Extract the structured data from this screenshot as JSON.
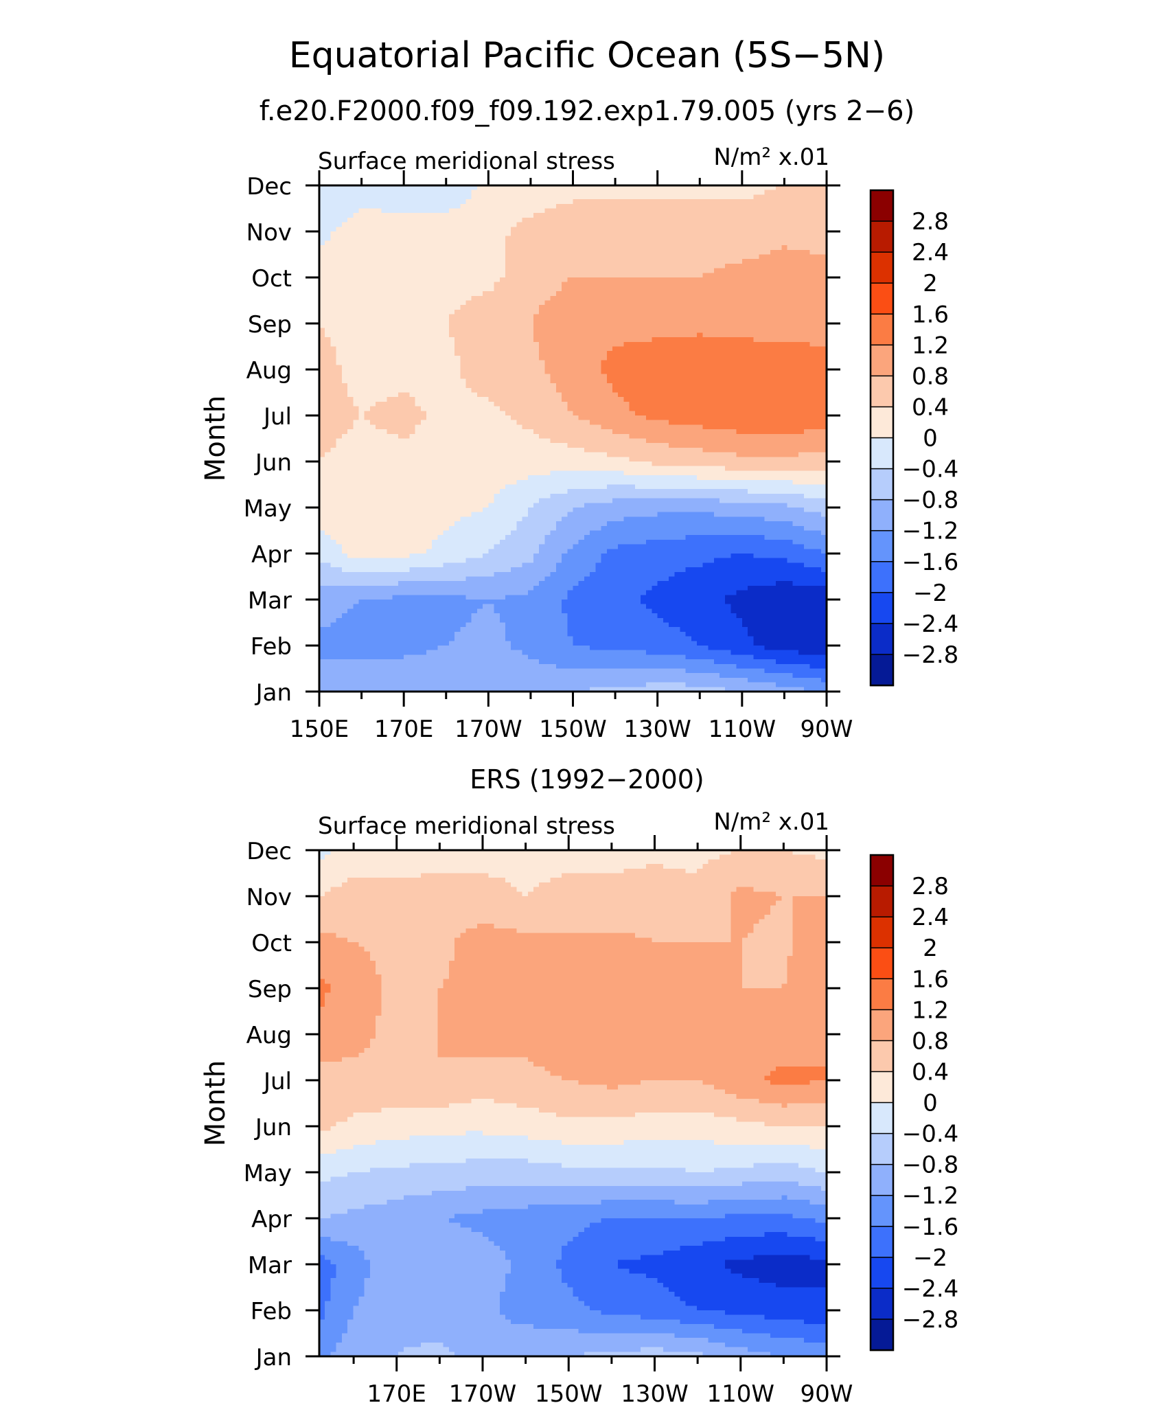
{
  "title": "Equatorial Pacific Ocean (5S−5N)",
  "subtitle": "f.e20.F2000.f09_f09.192.exp1.79.005 (yrs 2−6)",
  "colorbar": {
    "labels": [
      "2.8",
      "2.4",
      "2",
      "1.6",
      "1.2",
      "0.8",
      "0.4",
      "0",
      "−0.4",
      "−0.8",
      "−1.2",
      "−1.6",
      "−2",
      "−2.4",
      "−2.8"
    ],
    "levels": [
      2.8,
      2.4,
      2.0,
      1.6,
      1.2,
      0.8,
      0.4,
      0,
      -0.4,
      -0.8,
      -1.2,
      -1.6,
      -2.0,
      -2.4,
      -2.8
    ],
    "colors": [
      "#8b0000",
      "#b81b00",
      "#dc3100",
      "#fb4e14",
      "#fb7c44",
      "#fba57c",
      "#fcc9ad",
      "#fde9d9",
      "#d8e8fc",
      "#b6cdfc",
      "#8fb0fc",
      "#6494fc",
      "#3d71fc",
      "#1748f0",
      "#0b2cc8",
      "#051a96"
    ]
  },
  "chart_data": [
    {
      "type": "heatmap",
      "panel_title": "",
      "left_label": "Surface meridional stress",
      "right_label": "N/m² x.01",
      "ylabel": "Month",
      "xlabel": "",
      "x_tick_labels": [
        "150E",
        "170E",
        "170W",
        "150W",
        "130W",
        "110W",
        "90W"
      ],
      "x_tick_values": [
        150,
        170,
        190,
        210,
        230,
        250,
        270
      ],
      "y_tick_labels": [
        "Jan",
        "Feb",
        "Mar",
        "Apr",
        "May",
        "Jun",
        "Jul",
        "Aug",
        "Sep",
        "Oct",
        "Nov",
        "Dec"
      ],
      "xlim": [
        150,
        270
      ],
      "ylim": [
        1,
        12
      ],
      "x": [
        150,
        160,
        170,
        180,
        190,
        200,
        210,
        220,
        230,
        240,
        250,
        260,
        270
      ],
      "y": [
        1,
        2,
        3,
        4,
        5,
        6,
        7,
        8,
        9,
        10,
        11,
        12
      ],
      "z": [
        [
          -1.0,
          -0.8,
          -0.9,
          -0.9,
          -1.0,
          -0.9,
          -0.8,
          -0.7,
          -0.6,
          -0.6,
          -0.8,
          -1.0,
          -1.3
        ],
        [
          -1.3,
          -1.4,
          -1.3,
          -1.2,
          -1.1,
          -1.3,
          -1.6,
          -1.7,
          -1.8,
          -2.0,
          -2.3,
          -2.6,
          -2.7
        ],
        [
          -1.0,
          -1.2,
          -1.3,
          -1.3,
          -1.2,
          -1.3,
          -1.7,
          -1.9,
          -2.1,
          -2.3,
          -2.5,
          -2.7,
          -2.7
        ],
        [
          -0.3,
          0.2,
          0.1,
          -0.1,
          -0.4,
          -0.7,
          -1.3,
          -1.7,
          -1.8,
          -1.9,
          -2.0,
          -1.9,
          -1.6
        ],
        [
          0.3,
          0.2,
          0.2,
          0.1,
          0.0,
          -0.4,
          -0.8,
          -1.0,
          -1.1,
          -1.1,
          -1.0,
          -0.9,
          -0.6
        ],
        [
          0.4,
          0.3,
          0.3,
          0.3,
          0.2,
          0.2,
          0.2,
          0.3,
          0.5,
          0.6,
          0.7,
          0.7,
          0.6
        ],
        [
          0.5,
          0.4,
          0.5,
          0.3,
          0.3,
          0.5,
          0.8,
          1.1,
          1.3,
          1.4,
          1.5,
          1.6,
          1.4
        ],
        [
          0.5,
          0.3,
          0.3,
          0.3,
          0.6,
          0.7,
          1.0,
          1.3,
          1.4,
          1.5,
          1.6,
          1.5,
          1.4
        ],
        [
          0.4,
          0.3,
          0.3,
          0.4,
          0.6,
          0.8,
          1.1,
          1.1,
          1.1,
          1.1,
          1.0,
          1.0,
          1.0
        ],
        [
          0.2,
          0.3,
          0.3,
          0.3,
          0.3,
          0.6,
          0.8,
          0.8,
          0.8,
          0.8,
          0.9,
          1.0,
          1.0
        ],
        [
          -0.1,
          0.2,
          0.2,
          0.2,
          0.3,
          0.5,
          0.6,
          0.6,
          0.6,
          0.6,
          0.6,
          0.7,
          0.6
        ],
        [
          -0.3,
          -0.2,
          -0.3,
          -0.3,
          0.1,
          0.2,
          0.3,
          0.3,
          0.3,
          0.3,
          0.3,
          0.4,
          0.4
        ]
      ]
    },
    {
      "type": "heatmap",
      "panel_title": "ERS (1992−2000)",
      "left_label": "Surface meridional stress",
      "right_label": "N/m² x.01",
      "ylabel": "Month",
      "xlabel": "",
      "x_tick_labels": [
        "170E",
        "170W",
        "150W",
        "130W",
        "110W",
        "90W"
      ],
      "x_tick_values": [
        170,
        190,
        210,
        230,
        250,
        270
      ],
      "y_tick_labels": [
        "Jan",
        "Feb",
        "Mar",
        "Apr",
        "May",
        "Jun",
        "Jul",
        "Aug",
        "Sep",
        "Oct",
        "Nov",
        "Dec"
      ],
      "xlim": [
        152,
        270
      ],
      "ylim": [
        1,
        12
      ],
      "x": [
        152,
        160,
        170,
        180,
        190,
        200,
        210,
        220,
        230,
        240,
        250,
        260,
        270
      ],
      "y": [
        1,
        2,
        3,
        4,
        5,
        6,
        7,
        8,
        9,
        10,
        11,
        12
      ],
      "z": [
        [
          -1.3,
          -1.0,
          -0.8,
          -0.7,
          -1.0,
          -0.8,
          -0.8,
          -0.7,
          -0.6,
          -0.7,
          -1.0,
          -1.2,
          -1.3
        ],
        [
          -1.7,
          -1.2,
          -0.9,
          -1.0,
          -1.1,
          -1.4,
          -1.5,
          -1.7,
          -1.8,
          -2.0,
          -2.1,
          -2.2,
          -2.3
        ],
        [
          -1.8,
          -1.4,
          -0.9,
          -0.8,
          -1.0,
          -1.3,
          -1.7,
          -2.0,
          -2.1,
          -2.3,
          -2.5,
          -2.6,
          -2.5
        ],
        [
          -0.8,
          -0.9,
          -1.0,
          -1.2,
          -1.3,
          -1.4,
          -1.5,
          -1.6,
          -1.6,
          -1.6,
          -1.7,
          -1.7,
          -1.5
        ],
        [
          -0.3,
          -0.4,
          -0.5,
          -0.5,
          -0.6,
          -0.6,
          -0.5,
          -0.5,
          -0.5,
          -0.4,
          -0.5,
          -0.6,
          -0.4
        ],
        [
          0.5,
          0.3,
          0.2,
          0.1,
          0.1,
          0.2,
          0.3,
          0.3,
          0.2,
          0.2,
          0.3,
          0.4,
          0.4
        ],
        [
          0.6,
          0.7,
          0.7,
          0.8,
          0.6,
          0.7,
          0.8,
          0.9,
          0.8,
          0.8,
          1.1,
          1.3,
          1.2
        ],
        [
          1.1,
          0.9,
          0.7,
          0.8,
          1.0,
          0.9,
          1.1,
          1.1,
          1.0,
          0.9,
          1.1,
          1.0,
          1.2
        ],
        [
          1.3,
          1.0,
          0.7,
          0.8,
          0.9,
          1.0,
          1.0,
          1.0,
          1.0,
          0.9,
          0.8,
          0.8,
          1.2
        ],
        [
          0.9,
          0.8,
          0.7,
          0.7,
          1.0,
          0.9,
          0.9,
          0.9,
          0.8,
          0.8,
          0.8,
          0.7,
          1.2
        ],
        [
          0.4,
          0.6,
          0.6,
          0.6,
          0.5,
          0.4,
          0.5,
          0.5,
          0.6,
          0.5,
          0.9,
          0.8,
          0.8
        ],
        [
          -0.1,
          0.1,
          0.1,
          0.2,
          0.3,
          0.3,
          0.3,
          0.3,
          0.3,
          0.3,
          0.4,
          0.4,
          0.3
        ]
      ]
    }
  ]
}
